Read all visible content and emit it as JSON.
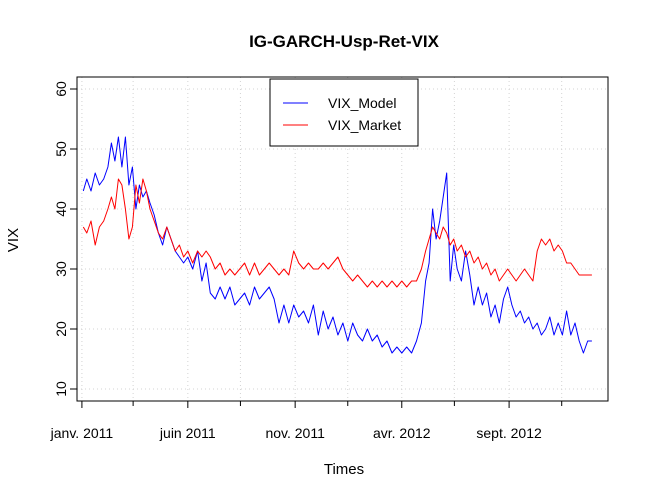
{
  "chart_data": {
    "type": "line",
    "title": "IG-GARCH-Usp-Ret-VIX",
    "xlabel": "Times",
    "ylabel": "VIX",
    "ylim": [
      8,
      62
    ],
    "y_ticks": [
      10,
      20,
      30,
      40,
      50,
      60
    ],
    "x_ticks": [
      "janv. 2011",
      "juin 2011",
      "nov. 2011",
      "avr. 2012",
      "sept. 2012"
    ],
    "x_range": [
      "2010-12-25",
      "2013-01-20"
    ],
    "grid": true,
    "legend_position": "top-center",
    "series": [
      {
        "name": "VIX_Model",
        "color": "#0000ff",
        "points": [
          [
            "2011-01-03",
            43
          ],
          [
            "2011-01-08",
            45
          ],
          [
            "2011-01-14",
            43
          ],
          [
            "2011-01-20",
            46
          ],
          [
            "2011-01-26",
            44
          ],
          [
            "2011-02-01",
            45
          ],
          [
            "2011-02-07",
            47
          ],
          [
            "2011-02-12",
            51
          ],
          [
            "2011-02-17",
            48
          ],
          [
            "2011-02-22",
            52
          ],
          [
            "2011-02-27",
            47
          ],
          [
            "2011-03-04",
            52
          ],
          [
            "2011-03-09",
            44
          ],
          [
            "2011-03-14",
            47
          ],
          [
            "2011-03-19",
            40
          ],
          [
            "2011-03-24",
            44
          ],
          [
            "2011-03-29",
            42
          ],
          [
            "2011-04-03",
            43
          ],
          [
            "2011-04-08",
            41
          ],
          [
            "2011-04-14",
            39
          ],
          [
            "2011-04-20",
            36
          ],
          [
            "2011-04-26",
            34
          ],
          [
            "2011-05-02",
            37
          ],
          [
            "2011-05-08",
            35
          ],
          [
            "2011-05-14",
            33
          ],
          [
            "2011-05-20",
            32
          ],
          [
            "2011-05-26",
            31
          ],
          [
            "2011-06-01",
            32
          ],
          [
            "2011-06-08",
            30
          ],
          [
            "2011-06-15",
            33
          ],
          [
            "2011-06-21",
            28
          ],
          [
            "2011-06-27",
            31
          ],
          [
            "2011-07-03",
            26
          ],
          [
            "2011-07-10",
            25
          ],
          [
            "2011-07-17",
            27
          ],
          [
            "2011-07-24",
            25
          ],
          [
            "2011-07-31",
            27
          ],
          [
            "2011-08-07",
            24
          ],
          [
            "2011-08-14",
            25
          ],
          [
            "2011-08-21",
            26
          ],
          [
            "2011-08-28",
            24
          ],
          [
            "2011-09-04",
            27
          ],
          [
            "2011-09-11",
            25
          ],
          [
            "2011-09-18",
            26
          ],
          [
            "2011-09-25",
            27
          ],
          [
            "2011-10-02",
            25
          ],
          [
            "2011-10-09",
            21
          ],
          [
            "2011-10-16",
            24
          ],
          [
            "2011-10-23",
            21
          ],
          [
            "2011-10-30",
            24
          ],
          [
            "2011-11-06",
            22
          ],
          [
            "2011-11-13",
            23
          ],
          [
            "2011-11-20",
            21
          ],
          [
            "2011-11-27",
            24
          ],
          [
            "2011-12-04",
            19
          ],
          [
            "2011-12-11",
            23
          ],
          [
            "2011-12-18",
            20
          ],
          [
            "2011-12-25",
            22
          ],
          [
            "2012-01-01",
            19
          ],
          [
            "2012-01-08",
            21
          ],
          [
            "2012-01-15",
            18
          ],
          [
            "2012-01-22",
            21
          ],
          [
            "2012-01-29",
            19
          ],
          [
            "2012-02-05",
            18
          ],
          [
            "2012-02-12",
            20
          ],
          [
            "2012-02-19",
            18
          ],
          [
            "2012-02-26",
            19
          ],
          [
            "2012-03-04",
            17
          ],
          [
            "2012-03-11",
            18
          ],
          [
            "2012-03-18",
            16
          ],
          [
            "2012-03-25",
            17
          ],
          [
            "2012-04-01",
            16
          ],
          [
            "2012-04-08",
            17
          ],
          [
            "2012-04-15",
            16
          ],
          [
            "2012-04-22",
            18
          ],
          [
            "2012-04-29",
            21
          ],
          [
            "2012-05-05",
            28
          ],
          [
            "2012-05-10",
            31
          ],
          [
            "2012-05-15",
            40
          ],
          [
            "2012-05-20",
            35
          ],
          [
            "2012-05-25",
            38
          ],
          [
            "2012-05-30",
            42
          ],
          [
            "2012-06-04",
            46
          ],
          [
            "2012-06-09",
            28
          ],
          [
            "2012-06-14",
            34
          ],
          [
            "2012-06-19",
            30
          ],
          [
            "2012-06-25",
            28
          ],
          [
            "2012-07-01",
            33
          ],
          [
            "2012-07-07",
            29
          ],
          [
            "2012-07-13",
            24
          ],
          [
            "2012-07-19",
            27
          ],
          [
            "2012-07-25",
            24
          ],
          [
            "2012-07-31",
            26
          ],
          [
            "2012-08-06",
            22
          ],
          [
            "2012-08-12",
            24
          ],
          [
            "2012-08-18",
            21
          ],
          [
            "2012-08-24",
            25
          ],
          [
            "2012-08-30",
            27
          ],
          [
            "2012-09-05",
            24
          ],
          [
            "2012-09-11",
            22
          ],
          [
            "2012-09-17",
            23
          ],
          [
            "2012-09-23",
            21
          ],
          [
            "2012-09-29",
            22
          ],
          [
            "2012-10-05",
            20
          ],
          [
            "2012-10-11",
            21
          ],
          [
            "2012-10-17",
            19
          ],
          [
            "2012-10-23",
            20
          ],
          [
            "2012-10-29",
            22
          ],
          [
            "2012-11-04",
            19
          ],
          [
            "2012-11-10",
            21
          ],
          [
            "2012-11-16",
            19
          ],
          [
            "2012-11-22",
            23
          ],
          [
            "2012-11-28",
            19
          ],
          [
            "2012-12-04",
            21
          ],
          [
            "2012-12-10",
            18
          ],
          [
            "2012-12-16",
            16
          ],
          [
            "2012-12-22",
            18
          ],
          [
            "2012-12-28",
            18
          ]
        ]
      },
      {
        "name": "VIX_Market",
        "color": "#ff0000",
        "points": [
          [
            "2011-01-03",
            37
          ],
          [
            "2011-01-08",
            36
          ],
          [
            "2011-01-14",
            38
          ],
          [
            "2011-01-20",
            34
          ],
          [
            "2011-01-26",
            37
          ],
          [
            "2011-02-01",
            38
          ],
          [
            "2011-02-07",
            40
          ],
          [
            "2011-02-12",
            42
          ],
          [
            "2011-02-17",
            40
          ],
          [
            "2011-02-22",
            45
          ],
          [
            "2011-02-27",
            44
          ],
          [
            "2011-03-04",
            40
          ],
          [
            "2011-03-09",
            35
          ],
          [
            "2011-03-14",
            37
          ],
          [
            "2011-03-19",
            44
          ],
          [
            "2011-03-24",
            41
          ],
          [
            "2011-03-29",
            45
          ],
          [
            "2011-04-03",
            43
          ],
          [
            "2011-04-08",
            40
          ],
          [
            "2011-04-14",
            38
          ],
          [
            "2011-04-20",
            36
          ],
          [
            "2011-04-26",
            35
          ],
          [
            "2011-05-02",
            37
          ],
          [
            "2011-05-08",
            35
          ],
          [
            "2011-05-14",
            33
          ],
          [
            "2011-05-20",
            34
          ],
          [
            "2011-05-26",
            32
          ],
          [
            "2011-06-01",
            33
          ],
          [
            "2011-06-08",
            31
          ],
          [
            "2011-06-15",
            33
          ],
          [
            "2011-06-21",
            32
          ],
          [
            "2011-06-27",
            33
          ],
          [
            "2011-07-03",
            32
          ],
          [
            "2011-07-10",
            30
          ],
          [
            "2011-07-17",
            31
          ],
          [
            "2011-07-24",
            29
          ],
          [
            "2011-07-31",
            30
          ],
          [
            "2011-08-07",
            29
          ],
          [
            "2011-08-14",
            30
          ],
          [
            "2011-08-21",
            31
          ],
          [
            "2011-08-28",
            29
          ],
          [
            "2011-09-04",
            31
          ],
          [
            "2011-09-11",
            29
          ],
          [
            "2011-09-18",
            30
          ],
          [
            "2011-09-25",
            31
          ],
          [
            "2011-10-02",
            30
          ],
          [
            "2011-10-09",
            29
          ],
          [
            "2011-10-16",
            30
          ],
          [
            "2011-10-23",
            29
          ],
          [
            "2011-10-30",
            33
          ],
          [
            "2011-11-06",
            31
          ],
          [
            "2011-11-13",
            30
          ],
          [
            "2011-11-20",
            31
          ],
          [
            "2011-11-27",
            30
          ],
          [
            "2011-12-04",
            30
          ],
          [
            "2011-12-11",
            31
          ],
          [
            "2011-12-18",
            30
          ],
          [
            "2011-12-25",
            31
          ],
          [
            "2012-01-01",
            32
          ],
          [
            "2012-01-08",
            30
          ],
          [
            "2012-01-15",
            29
          ],
          [
            "2012-01-22",
            28
          ],
          [
            "2012-01-29",
            29
          ],
          [
            "2012-02-05",
            28
          ],
          [
            "2012-02-12",
            27
          ],
          [
            "2012-02-19",
            28
          ],
          [
            "2012-02-26",
            27
          ],
          [
            "2012-03-04",
            28
          ],
          [
            "2012-03-11",
            27
          ],
          [
            "2012-03-18",
            28
          ],
          [
            "2012-03-25",
            27
          ],
          [
            "2012-04-01",
            28
          ],
          [
            "2012-04-08",
            27
          ],
          [
            "2012-04-15",
            28
          ],
          [
            "2012-04-22",
            28
          ],
          [
            "2012-04-29",
            30
          ],
          [
            "2012-05-05",
            33
          ],
          [
            "2012-05-10",
            35
          ],
          [
            "2012-05-15",
            37
          ],
          [
            "2012-05-20",
            36
          ],
          [
            "2012-05-25",
            35
          ],
          [
            "2012-05-30",
            37
          ],
          [
            "2012-06-04",
            36
          ],
          [
            "2012-06-09",
            34
          ],
          [
            "2012-06-14",
            35
          ],
          [
            "2012-06-19",
            33
          ],
          [
            "2012-06-25",
            34
          ],
          [
            "2012-07-01",
            32
          ],
          [
            "2012-07-07",
            33
          ],
          [
            "2012-07-13",
            31
          ],
          [
            "2012-07-19",
            32
          ],
          [
            "2012-07-25",
            30
          ],
          [
            "2012-07-31",
            31
          ],
          [
            "2012-08-06",
            29
          ],
          [
            "2012-08-12",
            30
          ],
          [
            "2012-08-18",
            28
          ],
          [
            "2012-08-24",
            29
          ],
          [
            "2012-08-30",
            30
          ],
          [
            "2012-09-05",
            29
          ],
          [
            "2012-09-11",
            28
          ],
          [
            "2012-09-17",
            29
          ],
          [
            "2012-09-23",
            30
          ],
          [
            "2012-09-29",
            29
          ],
          [
            "2012-10-05",
            28
          ],
          [
            "2012-10-11",
            33
          ],
          [
            "2012-10-17",
            35
          ],
          [
            "2012-10-23",
            34
          ],
          [
            "2012-10-29",
            35
          ],
          [
            "2012-11-04",
            33
          ],
          [
            "2012-11-10",
            34
          ],
          [
            "2012-11-16",
            33
          ],
          [
            "2012-11-22",
            31
          ],
          [
            "2012-11-28",
            31
          ],
          [
            "2012-12-04",
            30
          ],
          [
            "2012-12-10",
            29
          ],
          [
            "2012-12-16",
            29
          ],
          [
            "2012-12-22",
            29
          ],
          [
            "2012-12-28",
            29
          ]
        ]
      }
    ]
  }
}
